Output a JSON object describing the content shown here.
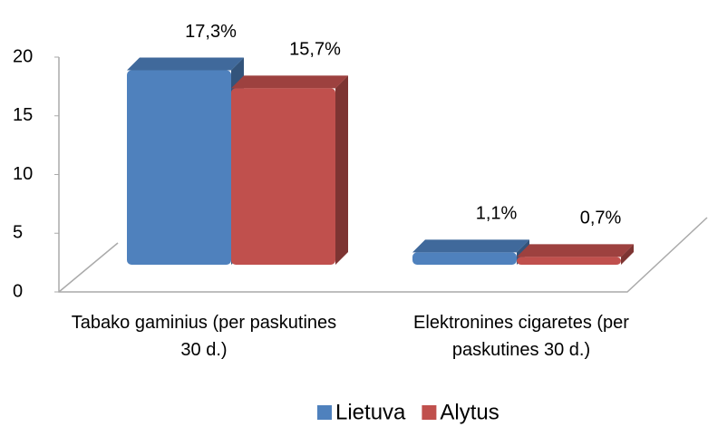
{
  "chart_data": {
    "type": "bar3d",
    "categories": [
      "Tabako gaminius (per paskutines 30 d.)",
      "Elektronines cigaretes (per paskutines 30 d.)"
    ],
    "series": [
      {
        "name": "Lietuva",
        "color": "#4f81bd",
        "values": [
          17.3,
          1.1
        ],
        "value_labels": [
          "17,3%",
          "1,1%"
        ]
      },
      {
        "name": "Alytus",
        "color": "#c0504d",
        "values": [
          15.7,
          0.7
        ],
        "value_labels": [
          "15,7%",
          "0,7%"
        ]
      }
    ],
    "ylim": [
      0,
      20
    ],
    "yticks": [
      0,
      5,
      10,
      15,
      20
    ],
    "legend": "bottom"
  }
}
